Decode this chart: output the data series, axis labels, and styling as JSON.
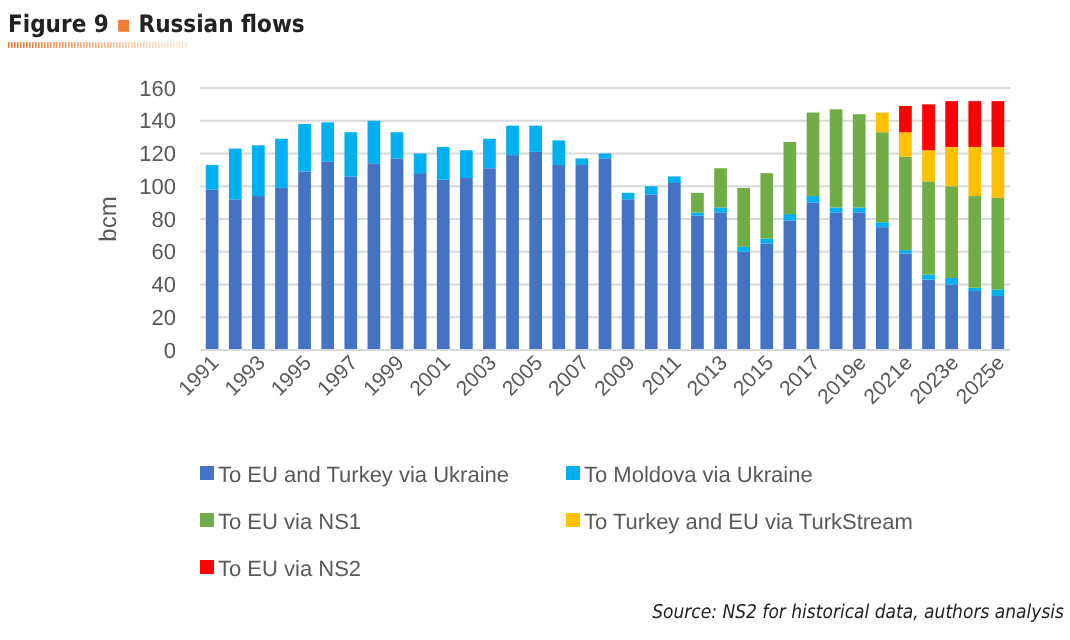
{
  "chart_data": {
    "type": "bar",
    "title": "Figure 9 ▪ Russian flows",
    "ylabel": "bcm",
    "stacked": true,
    "grid": "y",
    "legend": "bottom",
    "categories": [
      "1991",
      null,
      "1993",
      null,
      "1995",
      null,
      "1997",
      null,
      "1999",
      null,
      "2001",
      null,
      "2003",
      null,
      "2005",
      null,
      "2007",
      null,
      "2009",
      null,
      "2011",
      null,
      "2013",
      null,
      "2015",
      null,
      "2017",
      null,
      "2019e",
      null,
      "2021e",
      null,
      "2023e",
      null,
      "2025e"
    ],
    "ylim": [
      0,
      160
    ],
    "yticks": [
      0,
      20,
      40,
      60,
      80,
      100,
      120,
      140,
      160
    ],
    "series": [
      {
        "name": "To EU and Turkey via Ukraine",
        "color": "#4472c4",
        "values": [
          98,
          92,
          94,
          99,
          109,
          115,
          106,
          114,
          117,
          108,
          104,
          105,
          111,
          119,
          121,
          113,
          113,
          117,
          92,
          95,
          102,
          82,
          84,
          60,
          65,
          79,
          90,
          84,
          84,
          75,
          59,
          43,
          40,
          36,
          33
        ]
      },
      {
        "name": "To Moldova via Ukraine",
        "color": "#00b0f0",
        "values": [
          15,
          31,
          31,
          30,
          29,
          24,
          27,
          26,
          16,
          12,
          20,
          17,
          18,
          18,
          16,
          15,
          4,
          3,
          4,
          5,
          4,
          2,
          3,
          3,
          3,
          4,
          4,
          3,
          3,
          3,
          2,
          3,
          4,
          2,
          4
        ]
      },
      {
        "name": "To EU via NS1",
        "color": "#70ad47",
        "values": [
          null,
          null,
          null,
          null,
          null,
          null,
          null,
          null,
          null,
          null,
          null,
          null,
          null,
          null,
          null,
          null,
          null,
          null,
          null,
          null,
          null,
          12,
          24,
          36,
          40,
          44,
          51,
          60,
          57,
          55,
          57,
          57,
          56,
          56,
          56
        ]
      },
      {
        "name": "To Turkey and EU via TurkStream",
        "color": "#ffc000",
        "values": [
          null,
          null,
          null,
          null,
          null,
          null,
          null,
          null,
          null,
          null,
          null,
          null,
          null,
          null,
          null,
          null,
          null,
          null,
          null,
          null,
          null,
          null,
          null,
          null,
          null,
          null,
          null,
          null,
          null,
          12,
          15,
          19,
          24,
          30,
          31
        ]
      },
      {
        "name": "To EU via NS2",
        "color": "#ff0000",
        "values": [
          null,
          null,
          null,
          null,
          null,
          null,
          null,
          null,
          null,
          null,
          null,
          null,
          null,
          null,
          null,
          null,
          null,
          null,
          null,
          null,
          null,
          null,
          null,
          null,
          null,
          null,
          null,
          null,
          null,
          null,
          16,
          28,
          28,
          28,
          28
        ]
      }
    ],
    "annotations": [
      "Source: NS2 for historical data, authors analysis"
    ]
  }
}
